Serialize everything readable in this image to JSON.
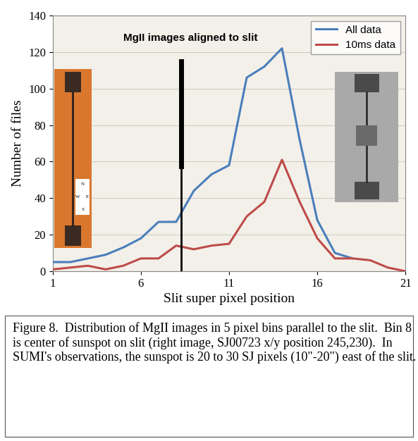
{
  "chart_data": {
    "type": "line",
    "title": "MgII images aligned to slit",
    "x_label": "Slit super pixel position",
    "y_label": "Number of files",
    "x": [
      1,
      2,
      3,
      4,
      5,
      6,
      7,
      8,
      9,
      10,
      11,
      12,
      13,
      14,
      15,
      16,
      17,
      18,
      19,
      20,
      21
    ],
    "series": [
      {
        "name": "All data",
        "color": "#4a7ebb",
        "values": [
          5,
          5,
          7,
          9,
          13,
          18,
          27,
          27,
          44,
          53,
          58,
          106,
          112,
          122,
          72,
          28,
          10,
          7,
          null,
          null,
          null
        ]
      },
      {
        "name": "10ms data",
        "color": "#be4b48",
        "values": [
          1,
          2,
          3,
          1,
          3,
          7,
          7,
          14,
          12,
          14,
          15,
          30,
          38,
          61,
          38,
          18,
          7,
          7,
          6,
          2,
          0
        ]
      }
    ],
    "xlim": [
      1,
      21
    ],
    "xticks": [
      1,
      6,
      11,
      16,
      21
    ],
    "ylim": [
      0,
      140
    ],
    "yticks": [
      0,
      20,
      40,
      60,
      80,
      100,
      120,
      140
    ],
    "grid": true,
    "legend": "upper right",
    "compass_labels": [
      "N",
      "W",
      "E",
      "S"
    ]
  },
  "caption": "Figure 8.  Distribution of MgII images in 5 pixel bins parallel to the slit.  Bin 8 is center of sunspot on slit (right image, SJ00723 x/y position 245,230).  In SUMI's observations, the sunspot is 20 to 30 SJ pixels (10\"-20\") east of the slit."
}
